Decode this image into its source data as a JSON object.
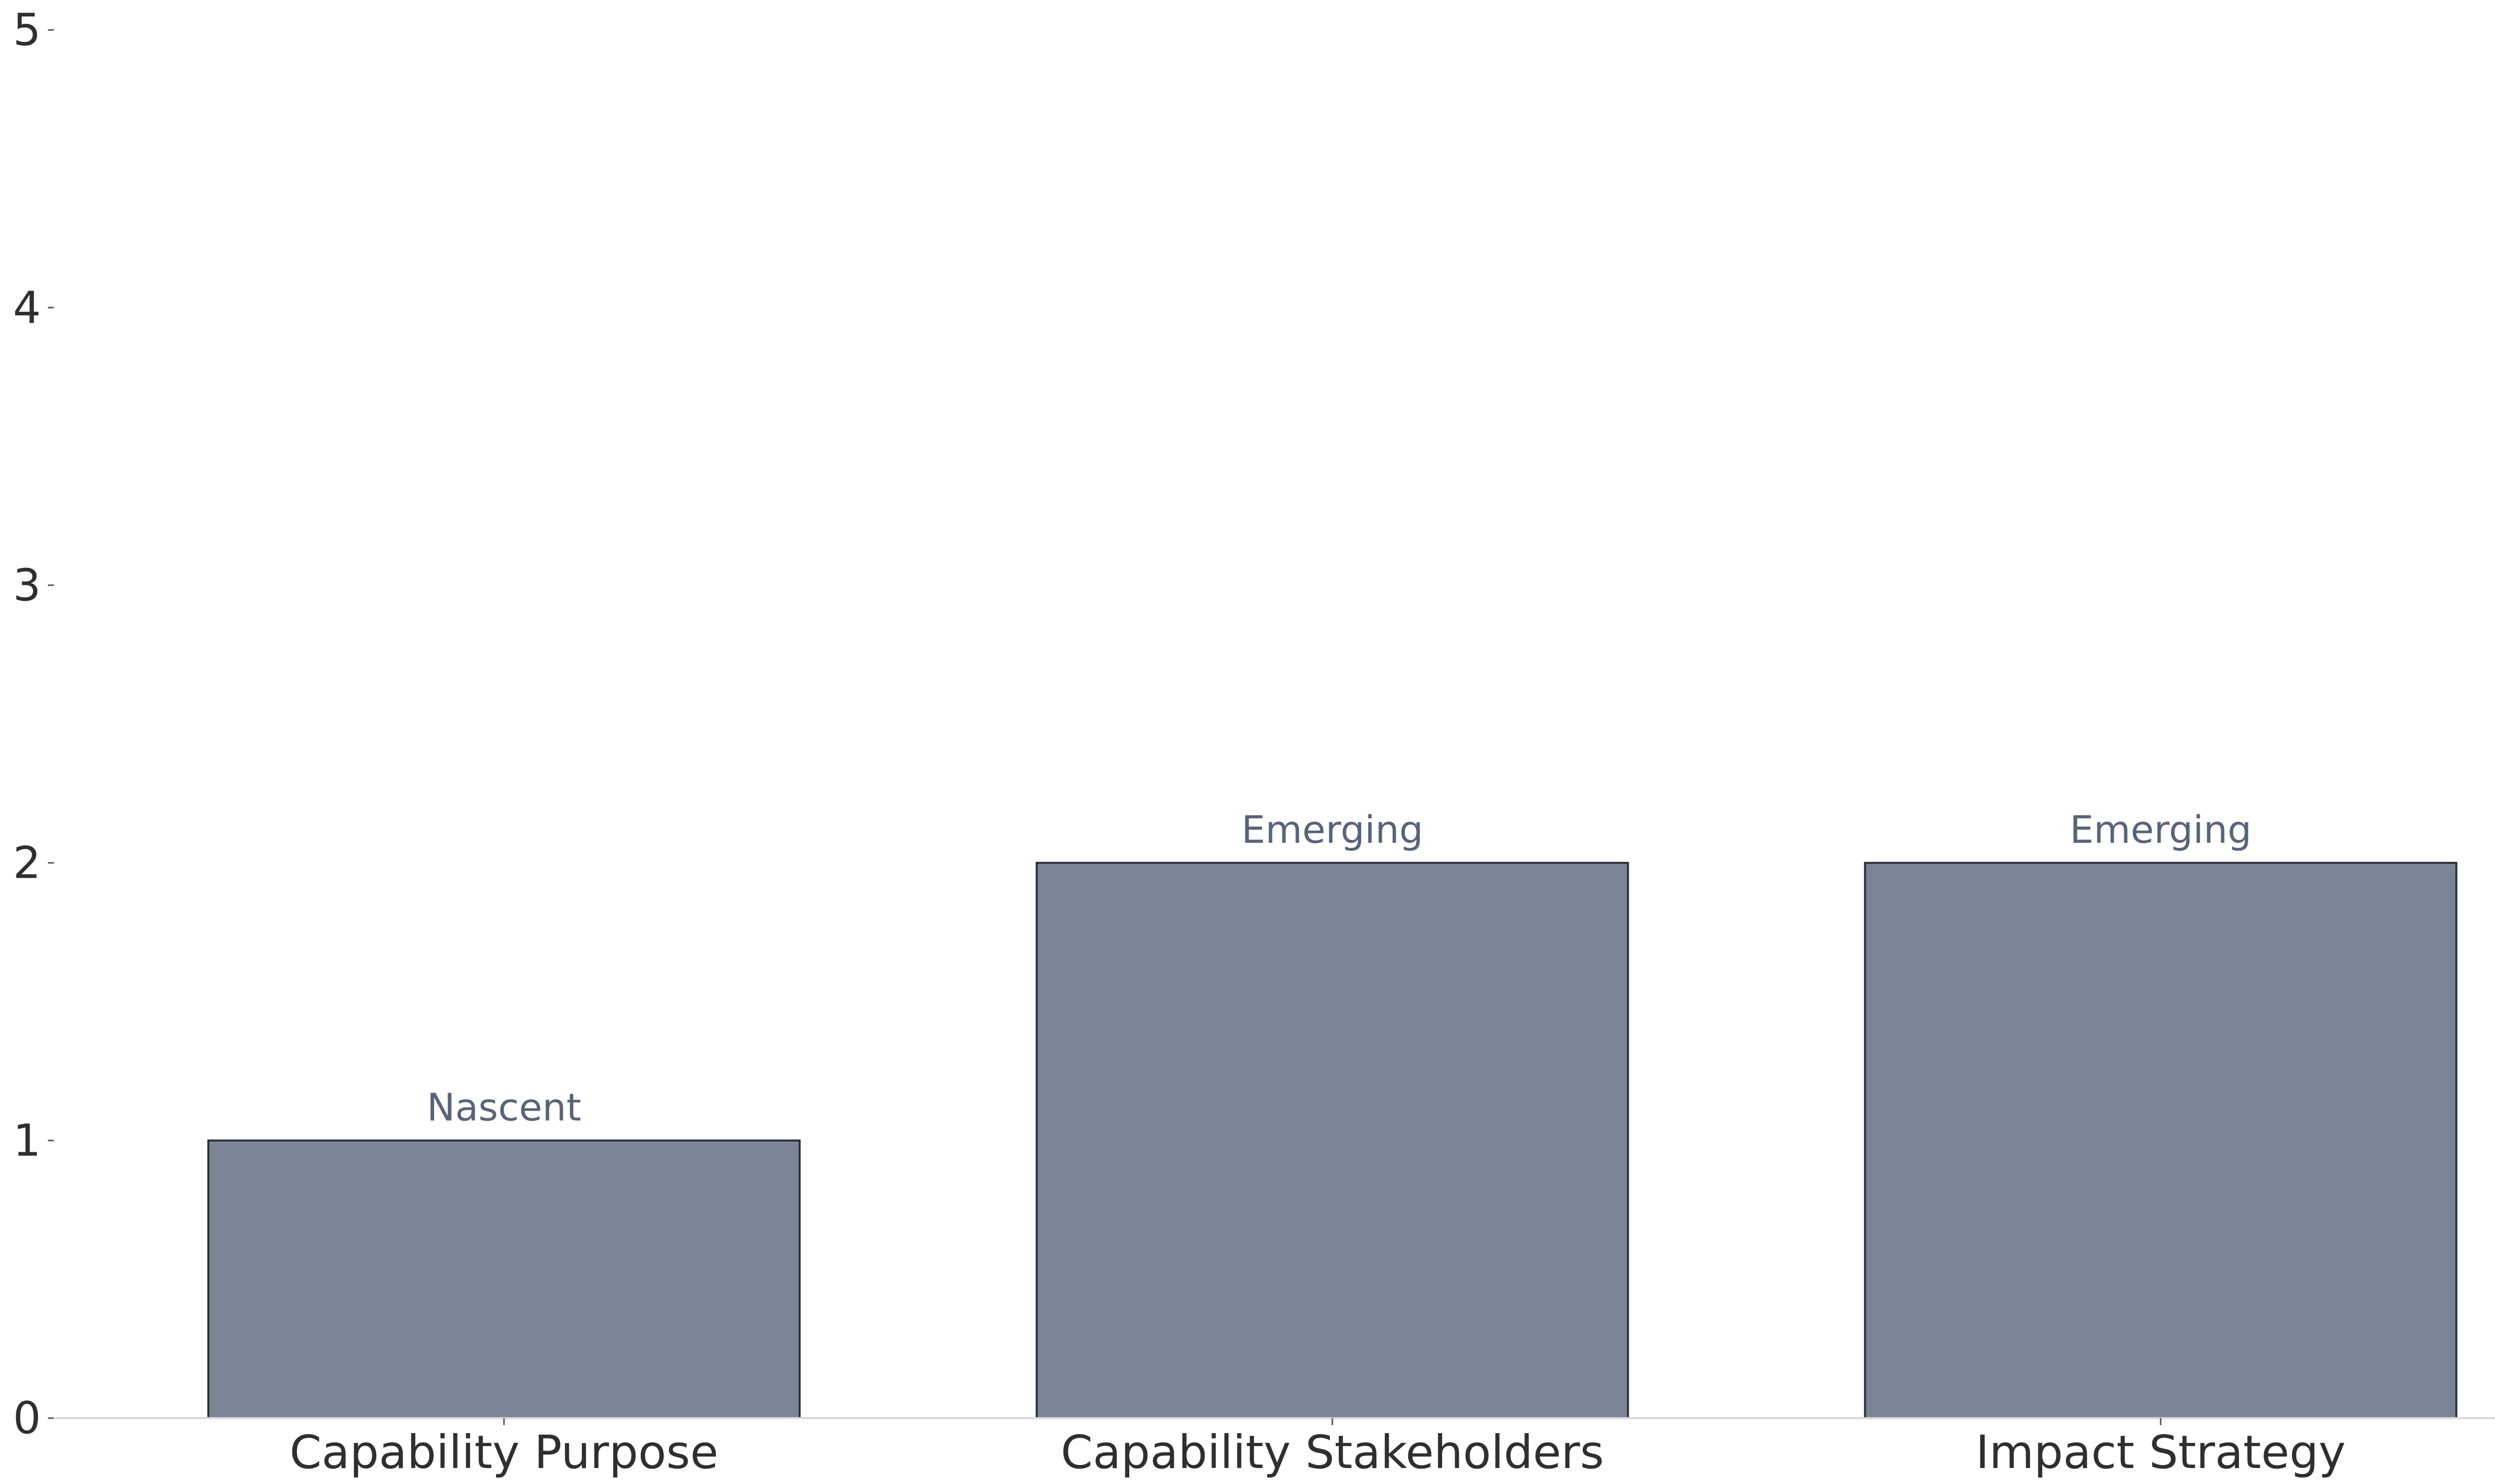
{
  "chart_data": {
    "type": "bar",
    "title": "",
    "xlabel": "",
    "ylabel": "",
    "categories": [
      "Capability Purpose",
      "Capability Stakeholders",
      "Impact Strategy"
    ],
    "values": [
      1,
      2,
      2
    ],
    "bar_labels": [
      "Nascent",
      "Emerging",
      "Emerging"
    ],
    "ylim": [
      0,
      5
    ],
    "yticks": [
      0,
      1,
      2,
      3,
      4,
      5
    ],
    "grid": false,
    "legend": "none",
    "colors": {
      "bar_fill": "#7a8595",
      "bar_edge": "#2b2f36",
      "bar_label": "#5a6478",
      "axis_line": "#d9d9d9",
      "tick_mark": "#555555"
    }
  }
}
